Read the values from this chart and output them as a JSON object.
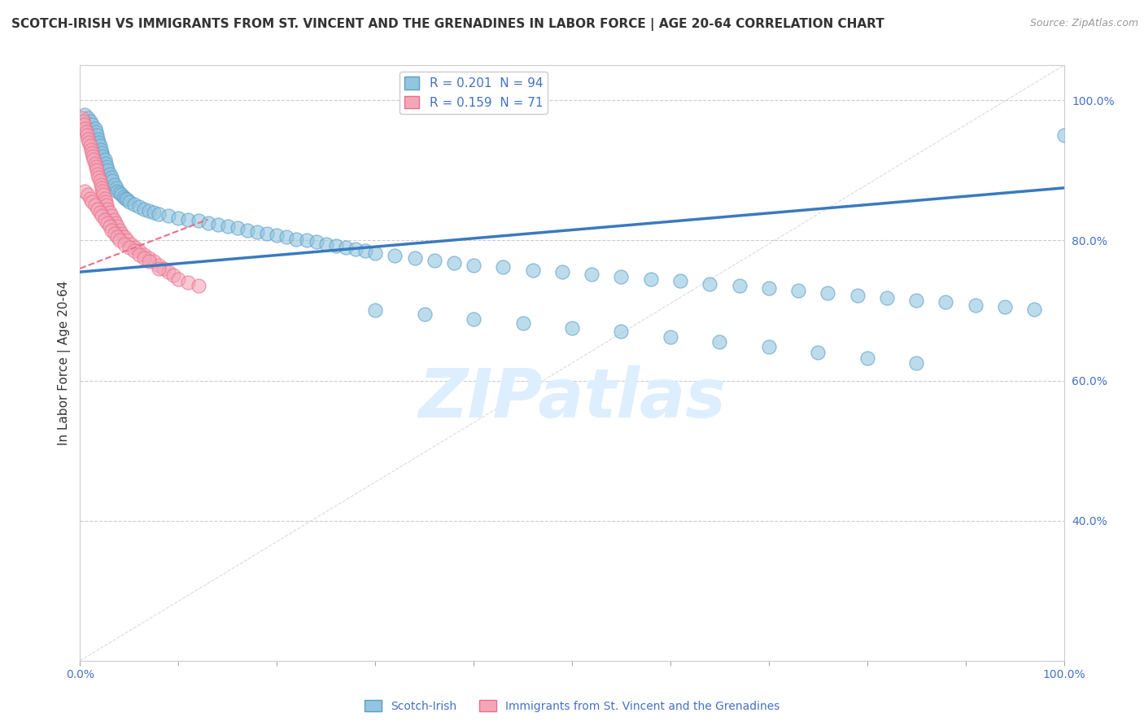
{
  "title": "SCOTCH-IRISH VS IMMIGRANTS FROM ST. VINCENT AND THE GRENADINES IN LABOR FORCE | AGE 20-64 CORRELATION CHART",
  "source": "Source: ZipAtlas.com",
  "ylabel": "In Labor Force | Age 20-64",
  "xlim": [
    0.0,
    1.0
  ],
  "ylim": [
    0.2,
    1.05
  ],
  "blue_R": 0.201,
  "blue_N": 94,
  "pink_R": 0.159,
  "pink_N": 71,
  "blue_color": "#92c5de",
  "pink_color": "#f4a6b8",
  "blue_edge_color": "#5b9ec9",
  "pink_edge_color": "#e8708a",
  "blue_line_color": "#3a7abf",
  "pink_line_color": "#e8708a",
  "grid_color": "#cccccc",
  "title_color": "#333333",
  "axis_label_color": "#4472c4",
  "watermark_color": "#ddeeff",
  "background_color": "#ffffff",
  "title_fontsize": 11,
  "axis_label_fontsize": 11,
  "tick_fontsize": 10,
  "legend_fontsize": 11,
  "blue_scatter_x": [
    0.005,
    0.008,
    0.01,
    0.012,
    0.015,
    0.016,
    0.017,
    0.018,
    0.019,
    0.02,
    0.021,
    0.022,
    0.023,
    0.025,
    0.026,
    0.027,
    0.028,
    0.03,
    0.032,
    0.033,
    0.035,
    0.037,
    0.038,
    0.04,
    0.042,
    0.044,
    0.046,
    0.048,
    0.05,
    0.055,
    0.06,
    0.065,
    0.07,
    0.075,
    0.08,
    0.09,
    0.1,
    0.11,
    0.12,
    0.13,
    0.14,
    0.15,
    0.16,
    0.17,
    0.18,
    0.19,
    0.2,
    0.21,
    0.22,
    0.23,
    0.24,
    0.25,
    0.26,
    0.27,
    0.28,
    0.29,
    0.3,
    0.32,
    0.34,
    0.36,
    0.38,
    0.4,
    0.43,
    0.46,
    0.49,
    0.52,
    0.55,
    0.58,
    0.61,
    0.64,
    0.67,
    0.7,
    0.73,
    0.76,
    0.79,
    0.82,
    0.85,
    0.88,
    0.91,
    0.94,
    0.97,
    1.0,
    0.3,
    0.35,
    0.4,
    0.45,
    0.5,
    0.55,
    0.6,
    0.65,
    0.7,
    0.75,
    0.8,
    0.85
  ],
  "blue_scatter_y": [
    0.98,
    0.975,
    0.97,
    0.965,
    0.96,
    0.955,
    0.95,
    0.945,
    0.94,
    0.935,
    0.93,
    0.925,
    0.92,
    0.915,
    0.91,
    0.905,
    0.9,
    0.895,
    0.89,
    0.885,
    0.88,
    0.875,
    0.87,
    0.868,
    0.865,
    0.862,
    0.86,
    0.858,
    0.855,
    0.852,
    0.848,
    0.845,
    0.842,
    0.84,
    0.838,
    0.835,
    0.832,
    0.83,
    0.828,
    0.825,
    0.822,
    0.82,
    0.818,
    0.815,
    0.812,
    0.81,
    0.808,
    0.805,
    0.802,
    0.8,
    0.798,
    0.795,
    0.792,
    0.79,
    0.788,
    0.785,
    0.782,
    0.778,
    0.775,
    0.772,
    0.768,
    0.765,
    0.762,
    0.758,
    0.755,
    0.752,
    0.748,
    0.745,
    0.742,
    0.738,
    0.735,
    0.732,
    0.728,
    0.725,
    0.722,
    0.718,
    0.715,
    0.712,
    0.708,
    0.705,
    0.702,
    0.95,
    0.7,
    0.695,
    0.688,
    0.682,
    0.675,
    0.67,
    0.662,
    0.655,
    0.648,
    0.64,
    0.632,
    0.625
  ],
  "pink_scatter_x": [
    0.002,
    0.003,
    0.004,
    0.005,
    0.006,
    0.007,
    0.008,
    0.009,
    0.01,
    0.011,
    0.012,
    0.013,
    0.014,
    0.015,
    0.016,
    0.017,
    0.018,
    0.019,
    0.02,
    0.021,
    0.022,
    0.023,
    0.024,
    0.025,
    0.026,
    0.027,
    0.028,
    0.03,
    0.032,
    0.034,
    0.036,
    0.038,
    0.04,
    0.042,
    0.045,
    0.048,
    0.052,
    0.056,
    0.06,
    0.065,
    0.07,
    0.075,
    0.08,
    0.085,
    0.09,
    0.095,
    0.1,
    0.11,
    0.12,
    0.005,
    0.008,
    0.01,
    0.012,
    0.015,
    0.018,
    0.02,
    0.022,
    0.025,
    0.028,
    0.03,
    0.032,
    0.035,
    0.038,
    0.04,
    0.045,
    0.05,
    0.055,
    0.06,
    0.065,
    0.07,
    0.08
  ],
  "pink_scatter_y": [
    0.975,
    0.97,
    0.965,
    0.96,
    0.955,
    0.95,
    0.945,
    0.94,
    0.935,
    0.93,
    0.925,
    0.92,
    0.915,
    0.91,
    0.905,
    0.9,
    0.895,
    0.89,
    0.885,
    0.88,
    0.875,
    0.87,
    0.865,
    0.86,
    0.855,
    0.85,
    0.845,
    0.84,
    0.835,
    0.83,
    0.825,
    0.82,
    0.815,
    0.81,
    0.805,
    0.8,
    0.795,
    0.79,
    0.785,
    0.78,
    0.775,
    0.77,
    0.765,
    0.76,
    0.755,
    0.75,
    0.745,
    0.74,
    0.735,
    0.87,
    0.865,
    0.86,
    0.855,
    0.85,
    0.845,
    0.84,
    0.835,
    0.83,
    0.825,
    0.82,
    0.815,
    0.81,
    0.805,
    0.8,
    0.795,
    0.79,
    0.785,
    0.78,
    0.775,
    0.77,
    0.76
  ],
  "blue_trend_x": [
    0.0,
    1.0
  ],
  "blue_trend_y": [
    0.755,
    0.875
  ],
  "pink_trend_x": [
    0.0,
    0.13
  ],
  "pink_trend_y": [
    0.76,
    0.83
  ],
  "ytick_right_positions": [
    0.4,
    0.6,
    0.8,
    1.0
  ],
  "ytick_right_labels": [
    "40.0%",
    "60.0%",
    "80.0%",
    "100.0%"
  ],
  "xtick_positions": [
    0.0,
    0.1,
    0.2,
    0.3,
    0.4,
    0.5,
    0.6,
    0.7,
    0.8,
    0.9,
    1.0
  ],
  "xticklabels_ends": [
    "0.0%",
    "100.0%"
  ]
}
